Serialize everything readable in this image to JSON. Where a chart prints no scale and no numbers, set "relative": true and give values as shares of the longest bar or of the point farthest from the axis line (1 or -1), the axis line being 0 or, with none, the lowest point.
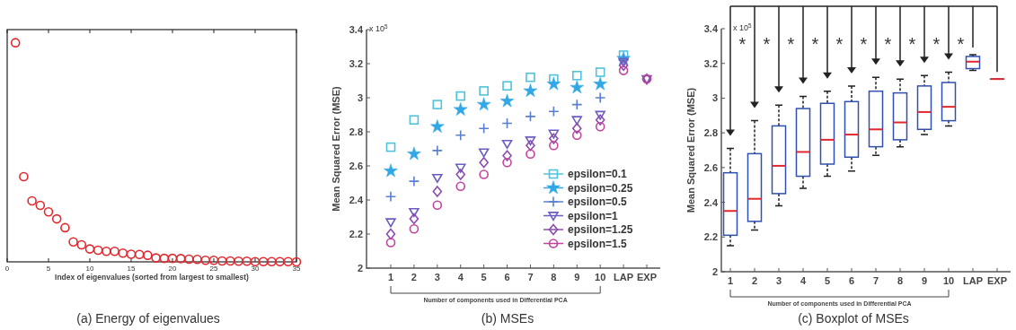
{
  "chart_data": [
    {
      "type": "scatter",
      "title": "(a) Energy of eigenvalues",
      "xlabel": "Index of eigenvalues (sorted from largest to smallest)",
      "relative": true,
      "tick_labels": "x",
      "marker": "circle",
      "xlim": [
        0,
        35
      ],
      "xticks": [
        0,
        5,
        10,
        15,
        20,
        25,
        30,
        35
      ],
      "x": [
        1,
        2,
        3,
        4,
        5,
        6,
        7,
        8,
        9,
        10,
        11,
        12,
        13,
        14,
        15,
        16,
        17,
        18,
        19,
        20,
        21,
        22,
        23,
        24,
        25,
        26,
        27,
        28,
        29,
        30,
        31,
        32,
        33,
        34,
        35
      ],
      "series": [
        {
          "color": "#e0282e",
          "values": [
            1,
            0.389,
            0.278,
            0.258,
            0.228,
            0.196,
            0.156,
            0.091,
            0.078,
            0.059,
            0.053,
            0.048,
            0.048,
            0.04,
            0.035,
            0.034,
            0.03,
            0.018,
            0.016,
            0.016,
            0.015,
            0.012,
            0.011,
            0.007,
            0.007,
            0.004,
            0.004,
            0.003,
            0.003,
            0.001,
            0.001,
            0.001,
            0.001,
            0.001,
            0
          ]
        }
      ]
    },
    {
      "type": "scatter",
      "title": "(b) MSEs",
      "xlabel": "Number of components used in Differential PCA",
      "ylabel": "Mean Squared Error (MSE)",
      "annotations": [
        "x 10$^{5}$"
      ],
      "legend": "bottom right",
      "categories": [
        "1",
        "2",
        "3",
        "4",
        "5",
        "6",
        "7",
        "8",
        "9",
        "10",
        "LAP",
        "EXP"
      ],
      "ylim": [
        2,
        3.4
      ],
      "yticks": [
        2,
        2.2,
        2.4,
        2.6,
        2.8,
        3,
        3.2,
        3.4
      ],
      "series": [
        {
          "name": "epsilon=0.1",
          "color": "#4fc3dc",
          "marker": "square",
          "values": [
            2.71,
            2.87,
            2.96,
            3.01,
            3.04,
            3.07,
            3.12,
            3.11,
            3.13,
            3.15,
            3.25,
            null
          ]
        },
        {
          "name": "epsilon=0.25",
          "color": "#30a8e8",
          "marker": "star",
          "values": [
            2.57,
            2.67,
            2.83,
            2.93,
            2.96,
            2.98,
            3.04,
            3.08,
            3.06,
            3.08,
            3.23,
            null
          ]
        },
        {
          "name": "epsilon=0.5",
          "color": "#5a7fd0",
          "marker": "cross",
          "values": [
            2.42,
            2.51,
            2.69,
            2.78,
            2.82,
            2.85,
            2.89,
            2.92,
            2.96,
            3,
            3.22,
            null
          ]
        },
        {
          "name": "epsilon=1",
          "color": "#6a5cc0",
          "marker": "triangle",
          "values": [
            2.27,
            2.33,
            2.53,
            2.59,
            2.68,
            2.73,
            2.75,
            2.79,
            2.87,
            2.9,
            3.21,
            3.11
          ]
        },
        {
          "name": "epsilon=1.25",
          "color": "#8c4cb0",
          "marker": "diamond",
          "values": [
            2.2,
            2.29,
            2.45,
            2.55,
            2.62,
            2.66,
            2.72,
            2.76,
            2.82,
            2.87,
            3.19,
            3.11
          ]
        },
        {
          "name": "epsilon=1.5",
          "color": "#c0449c",
          "marker": "circle",
          "values": [
            2.15,
            2.23,
            2.37,
            2.48,
            2.55,
            2.62,
            2.67,
            2.72,
            2.78,
            2.83,
            3.16,
            3.11
          ]
        }
      ]
    },
    {
      "type": "box",
      "title": "(c) Boxplot of MSEs",
      "xlabel": "Number of components used in Differential PCA",
      "ylabel": "Mean Squared Error (MSE)",
      "annotations": [
        "x 10$^{5}$",
        "*",
        "*",
        "*",
        "*",
        "*",
        "*",
        "*",
        "*",
        "*",
        "*"
      ],
      "categories": [
        "1",
        "2",
        "3",
        "4",
        "5",
        "6",
        "7",
        "8",
        "9",
        "10",
        "LAP",
        "EXP"
      ],
      "ylim": [
        2,
        3.4
      ],
      "yticks": [
        2,
        2.2,
        2.4,
        2.6,
        2.8,
        3,
        3.2,
        3.4
      ],
      "series": [
        {
          "color": "#3050b0",
          "boxes": [
            {
              "low": 2.15,
              "q1": 2.21,
              "median": 2.35,
              "q3": 2.57,
              "high": 2.71
            },
            {
              "low": 2.24,
              "q1": 2.29,
              "median": 2.42,
              "q3": 2.68,
              "high": 2.87
            },
            {
              "low": 2.38,
              "q1": 2.45,
              "median": 2.61,
              "q3": 2.84,
              "high": 2.96
            },
            {
              "low": 2.48,
              "q1": 2.55,
              "median": 2.69,
              "q3": 2.94,
              "high": 3.01
            },
            {
              "low": 2.55,
              "q1": 2.62,
              "median": 2.76,
              "q3": 2.97,
              "high": 3.04
            },
            {
              "low": 2.58,
              "q1": 2.66,
              "median": 2.79,
              "q3": 2.98,
              "high": 3.07
            },
            {
              "low": 2.67,
              "q1": 2.72,
              "median": 2.82,
              "q3": 3.04,
              "high": 3.12
            },
            {
              "low": 2.72,
              "q1": 2.76,
              "median": 2.86,
              "q3": 3.03,
              "high": 3.11
            },
            {
              "low": 2.79,
              "q1": 2.82,
              "median": 2.92,
              "q3": 3.07,
              "high": 3.13
            },
            {
              "low": 2.84,
              "q1": 2.87,
              "median": 2.95,
              "q3": 3.09,
              "high": 3.15
            },
            {
              "low": 3.16,
              "q1": 3.17,
              "median": 3.21,
              "q3": 3.24,
              "high": 3.25
            },
            {
              "low": 3.11,
              "q1": 3.11,
              "median": 3.11,
              "q3": 3.11,
              "high": 3.11
            }
          ]
        }
      ]
    }
  ]
}
